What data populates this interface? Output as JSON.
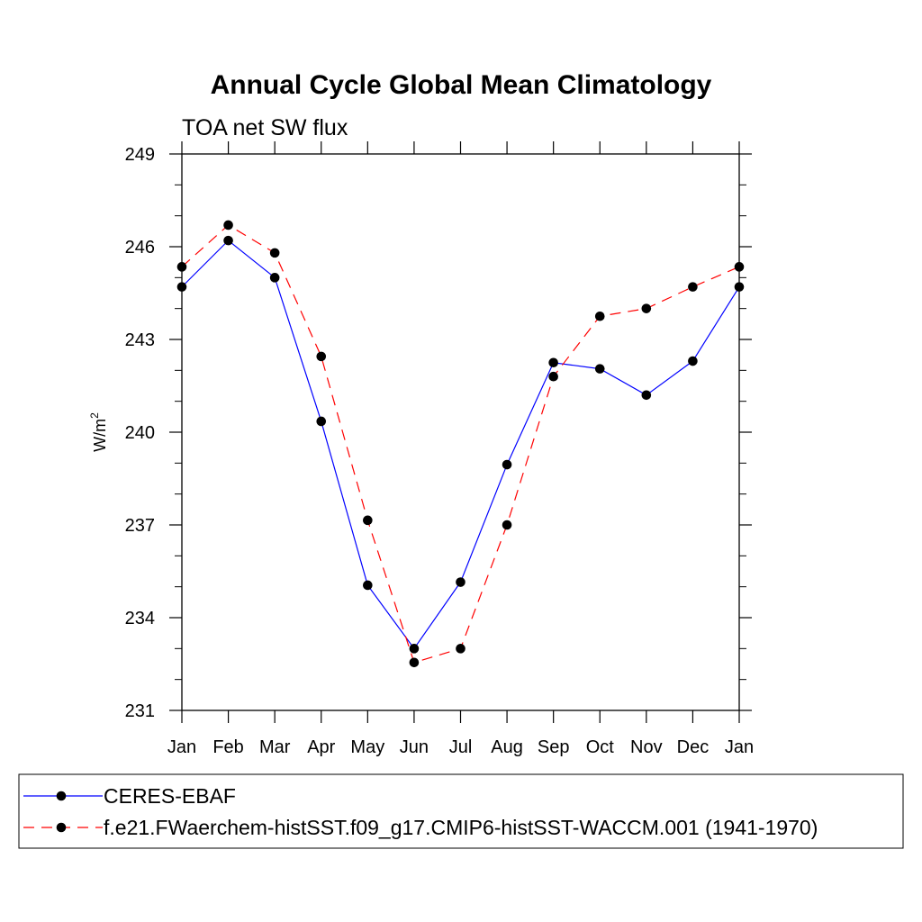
{
  "chart_data": {
    "type": "line",
    "title": "Annual Cycle Global Mean Climatology",
    "subtitle": "TOA net SW flux",
    "ylabel_base": "W/m",
    "ylabel_sup": "2",
    "ylim": [
      231,
      249
    ],
    "yticks": [
      "231",
      "234",
      "237",
      "240",
      "243",
      "246",
      "249"
    ],
    "categories": [
      "Jan",
      "Feb",
      "Mar",
      "Apr",
      "May",
      "Jun",
      "Jul",
      "Aug",
      "Sep",
      "Oct",
      "Nov",
      "Dec",
      "Jan"
    ],
    "grid": false,
    "legend_position": "bottom",
    "series": [
      {
        "name": "CERES-EBAF",
        "color": "#0000ff",
        "dash": "solid",
        "values": [
          244.7,
          246.2,
          245.0,
          240.35,
          235.05,
          233.0,
          235.15,
          238.95,
          242.25,
          242.05,
          241.2,
          242.3,
          244.7
        ]
      },
      {
        "name": "f.e21.FWaerchem-histSST.f09_g17.CMIP6-histSST-WACCM.001 (1941-1970)",
        "color": "#ff0000",
        "dash": "dashed",
        "values": [
          245.35,
          246.7,
          245.8,
          242.45,
          237.15,
          232.55,
          233.0,
          237.0,
          241.8,
          243.75,
          244.0,
          244.7,
          245.35
        ]
      }
    ]
  }
}
